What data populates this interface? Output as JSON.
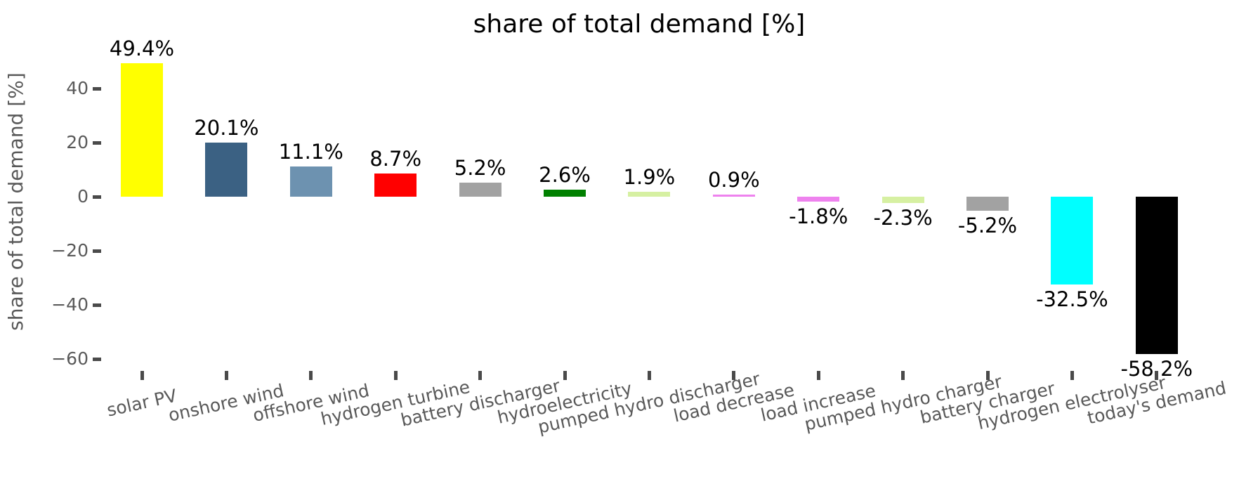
{
  "chart_data": {
    "type": "bar",
    "title": "share of total demand [%]",
    "ylabel": "share of total demand [%]",
    "xlabel": "",
    "ylim": [
      -65,
      55
    ],
    "grid": false,
    "legend": "none",
    "yticks": [
      40,
      20,
      0,
      -20,
      -40,
      -60
    ],
    "ytick_labels": [
      "40",
      "20",
      "0",
      "−20",
      "−40",
      "−60"
    ],
    "categories": [
      "solar PV",
      "onshore wind",
      "offshore wind",
      "hydrogen turbine",
      "battery discharger",
      "hydroelectricity",
      "pumped hydro discharger",
      "load decrease",
      "load increase",
      "pumped hydro charger",
      "battery charger",
      "hydrogen electrolyser",
      "today's demand"
    ],
    "values": [
      49.4,
      20.1,
      11.1,
      8.7,
      5.2,
      2.6,
      1.9,
      0.9,
      -1.8,
      -2.3,
      -5.2,
      -32.5,
      -58.2
    ],
    "bar_labels": [
      "49.4%",
      "20.1%",
      "11.1%",
      "8.7%",
      "5.2%",
      "2.6%",
      "1.9%",
      "0.9%",
      "-1.8%",
      "-2.3%",
      "-5.2%",
      "-32.5%",
      "-58.2%"
    ],
    "colors": [
      "#ffff00",
      "#3b6183",
      "#6d92b0",
      "#ff0000",
      "#a2a2a2",
      "#008000",
      "#d6f0a2",
      "#ee82ee",
      "#ee82ee",
      "#d6f0a2",
      "#a2a2a2",
      "#00ffff",
      "#000000"
    ],
    "text_colors": {
      "title": "#000000",
      "axis_labels": "#595959",
      "value_labels": "#000000"
    }
  }
}
